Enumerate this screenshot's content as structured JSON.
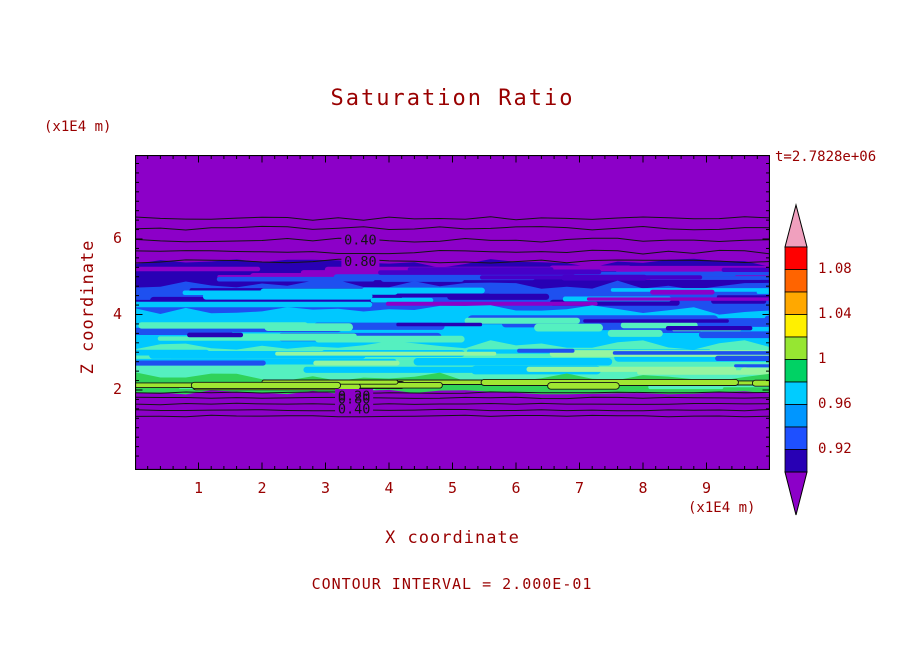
{
  "title": "Saturation Ratio",
  "header": {
    "time_label": "t=2.7828e+06"
  },
  "axes": {
    "x_label": "X coordinate",
    "y_label": "Z coordinate",
    "x_unit": "(x1E4 m)",
    "y_unit": "(x1E4 m)",
    "x_ticks": [
      "1",
      "2",
      "3",
      "4",
      "5",
      "6",
      "7",
      "8",
      "9"
    ],
    "y_ticks": [
      "2",
      "4",
      "6"
    ]
  },
  "footer": {
    "contour_interval": "CONTOUR INTERVAL = 2.000E-01"
  },
  "colors": {
    "text": "#990000",
    "contour_label": "#141414",
    "plot_border": "#000000"
  },
  "colorbar": {
    "labels": [
      "1.08",
      "1.04",
      "1",
      "0.96",
      "0.92"
    ],
    "segment_colors": [
      "#FF0000",
      "#FF6400",
      "#FFA800",
      "#FFF000",
      "#96E632",
      "#00D264",
      "#00CCFF",
      "#0096FF",
      "#1E50FF",
      "#2800B4"
    ],
    "arrow_top_color": "#F0A0BE",
    "arrow_bottom_color": "#8C00C8"
  },
  "chart_data": {
    "type": "heatmap",
    "title": "Saturation Ratio",
    "xlabel": "X coordinate (x1E4 m)",
    "ylabel": "Z coordinate (x1E4 m)",
    "x_range": [
      0,
      10
    ],
    "y_range": [
      0,
      8.3
    ],
    "time": "t=2.7828e+06",
    "contour_interval": 0.2,
    "colorbar_levels": [
      0.92,
      0.96,
      1.0,
      1.04,
      1.08
    ],
    "field_background": "#8C00C8",
    "description": "Horizontally layered saturation-ratio field: purple background (ratio < 0.9) above z~5.4 and below z~1.9; saturated streaky bands between, values increasing downward toward ~1.0 near z=2.",
    "bands": [
      {
        "name": "dark-blue",
        "z_top": 5.36,
        "z_bot": 4.78,
        "value_range": [
          0.9,
          0.92
        ],
        "color": "#2800B4",
        "streaks": [
          {
            "color": "#8C00C8",
            "count": 14,
            "hmin": 3,
            "hmax": 7
          },
          {
            "color": "#1E50F0",
            "count": 8,
            "hmin": 3,
            "hmax": 7
          },
          {
            "color": "#4600C8",
            "count": 6,
            "hmin": 3,
            "hmax": 6
          }
        ]
      },
      {
        "name": "blue",
        "z_top": 4.78,
        "z_bot": 4.12,
        "value_range": [
          0.92,
          0.94
        ],
        "color": "#1E50F0",
        "streaks": [
          {
            "color": "#2800B4",
            "count": 10,
            "hmin": 3,
            "hmax": 8
          },
          {
            "color": "#00C8FF",
            "count": 9,
            "hmin": 3,
            "hmax": 7
          },
          {
            "color": "#8C00C8",
            "count": 4,
            "hmin": 3,
            "hmax": 5
          }
        ]
      },
      {
        "name": "cyan",
        "z_top": 4.12,
        "z_bot": 3.19,
        "value_range": [
          0.94,
          0.96
        ],
        "color": "#00C8FF",
        "streaks": [
          {
            "color": "#1E50F0",
            "count": 11,
            "hmin": 4,
            "hmax": 9
          },
          {
            "color": "#55F0C0",
            "count": 10,
            "hmin": 4,
            "hmax": 8
          },
          {
            "color": "#2800B4",
            "count": 5,
            "hmin": 3,
            "hmax": 6
          }
        ]
      },
      {
        "name": "turquoise",
        "z_top": 3.19,
        "z_bot": 2.34,
        "value_range": [
          0.96,
          0.98
        ],
        "color": "#55F0C0",
        "streaks": [
          {
            "color": "#00C8FF",
            "count": 11,
            "hmin": 4,
            "hmax": 9
          },
          {
            "color": "#96F5A0",
            "count": 6,
            "hmin": 3,
            "hmax": 7
          },
          {
            "color": "#1E50F0",
            "count": 5,
            "hmin": 3,
            "hmax": 6
          }
        ]
      },
      {
        "name": "green",
        "z_top": 2.34,
        "z_bot": 1.95,
        "value_range": [
          0.98,
          1.02
        ],
        "color": "#30D25A",
        "wavy_bottom": true,
        "streaks": [
          {
            "color": "#55F0C0",
            "count": 5,
            "hmin": 3,
            "hmax": 6
          },
          {
            "color": "#A0E632",
            "count": 11,
            "hmin": 4,
            "hmax": 8,
            "outline": true
          }
        ]
      }
    ],
    "contour_lines": [
      {
        "z": 6.55
      },
      {
        "z": 6.29
      },
      {
        "z": 5.97,
        "label": "0.40"
      },
      {
        "z": 5.65
      },
      {
        "z": 5.41,
        "label": "0.80"
      },
      {
        "z": 1.93
      },
      {
        "z": 1.79
      },
      {
        "z": 1.63
      },
      {
        "z": 1.47
      },
      {
        "z": 1.31
      }
    ],
    "contour_labels": [
      {
        "text": "0.40",
        "x": 3.55,
        "z": 5.97
      },
      {
        "text": "0.80",
        "x": 3.55,
        "z": 5.41
      },
      {
        "text": "0.20",
        "x": 3.45,
        "z": 1.84
      },
      {
        "text": "0.80",
        "x": 3.45,
        "z": 1.76
      },
      {
        "text": "0.40",
        "x": 3.45,
        "z": 1.5
      }
    ]
  }
}
